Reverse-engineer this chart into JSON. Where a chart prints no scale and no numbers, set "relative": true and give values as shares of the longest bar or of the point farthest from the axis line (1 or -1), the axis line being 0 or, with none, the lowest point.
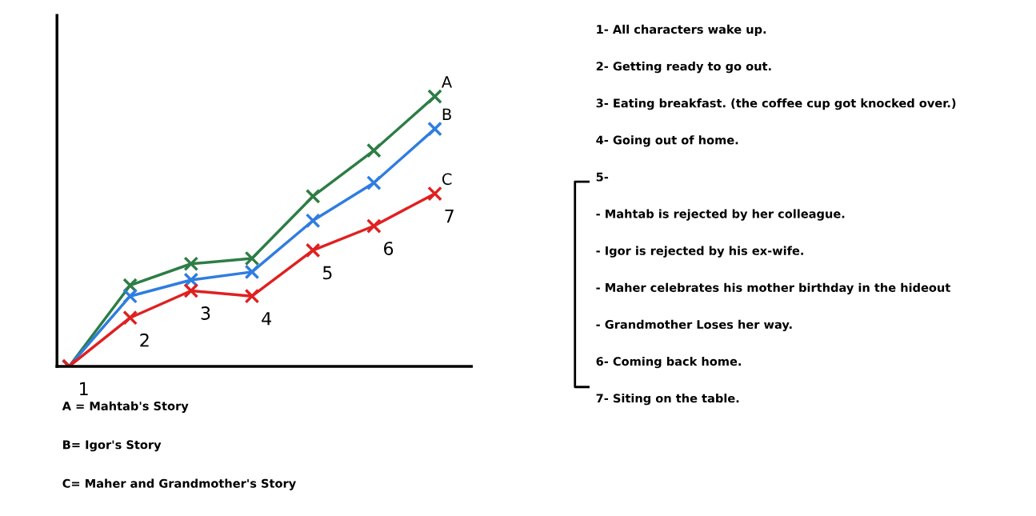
{
  "chart_data": {
    "type": "line",
    "relative": true,
    "marker": "cross",
    "line_style": "solid",
    "grid": false,
    "categories": [
      null,
      null,
      null,
      null,
      null,
      null,
      null
    ],
    "series": [
      {
        "name": "A",
        "color": "#2e7d45",
        "values": [
          0,
          0.3,
          0.38,
          0.4,
          0.63,
          0.8,
          1.0
        ]
      },
      {
        "name": "B",
        "color": "#2f7de0",
        "values": [
          0,
          0.26,
          0.32,
          0.35,
          0.54,
          0.68,
          0.88
        ]
      },
      {
        "name": "C",
        "color": "#e02020",
        "values": [
          0,
          0.18,
          0.28,
          0.26,
          0.43,
          0.52,
          0.64
        ]
      }
    ],
    "annotations": [
      "1",
      "2",
      "3",
      "4",
      "5",
      "6",
      "7",
      "A = Mahtab's Story",
      "B= Igor's Story",
      "C= Maher and Grandmother's Story",
      "1- All characters wake up.",
      "2- Getting ready to go out.",
      "3- Eating breakfast. (the coffee cup got knocked over.)",
      "4- Going out of home.",
      "5-",
      "- Mahtab is rejected by her colleague.",
      "- Igor is rejected by his ex-wife.",
      "- Maher celebrates his mother birthday in the hideout",
      "- Grandmother Loses her way.",
      "6- Coming back home.",
      "7- Siting on the table."
    ]
  }
}
